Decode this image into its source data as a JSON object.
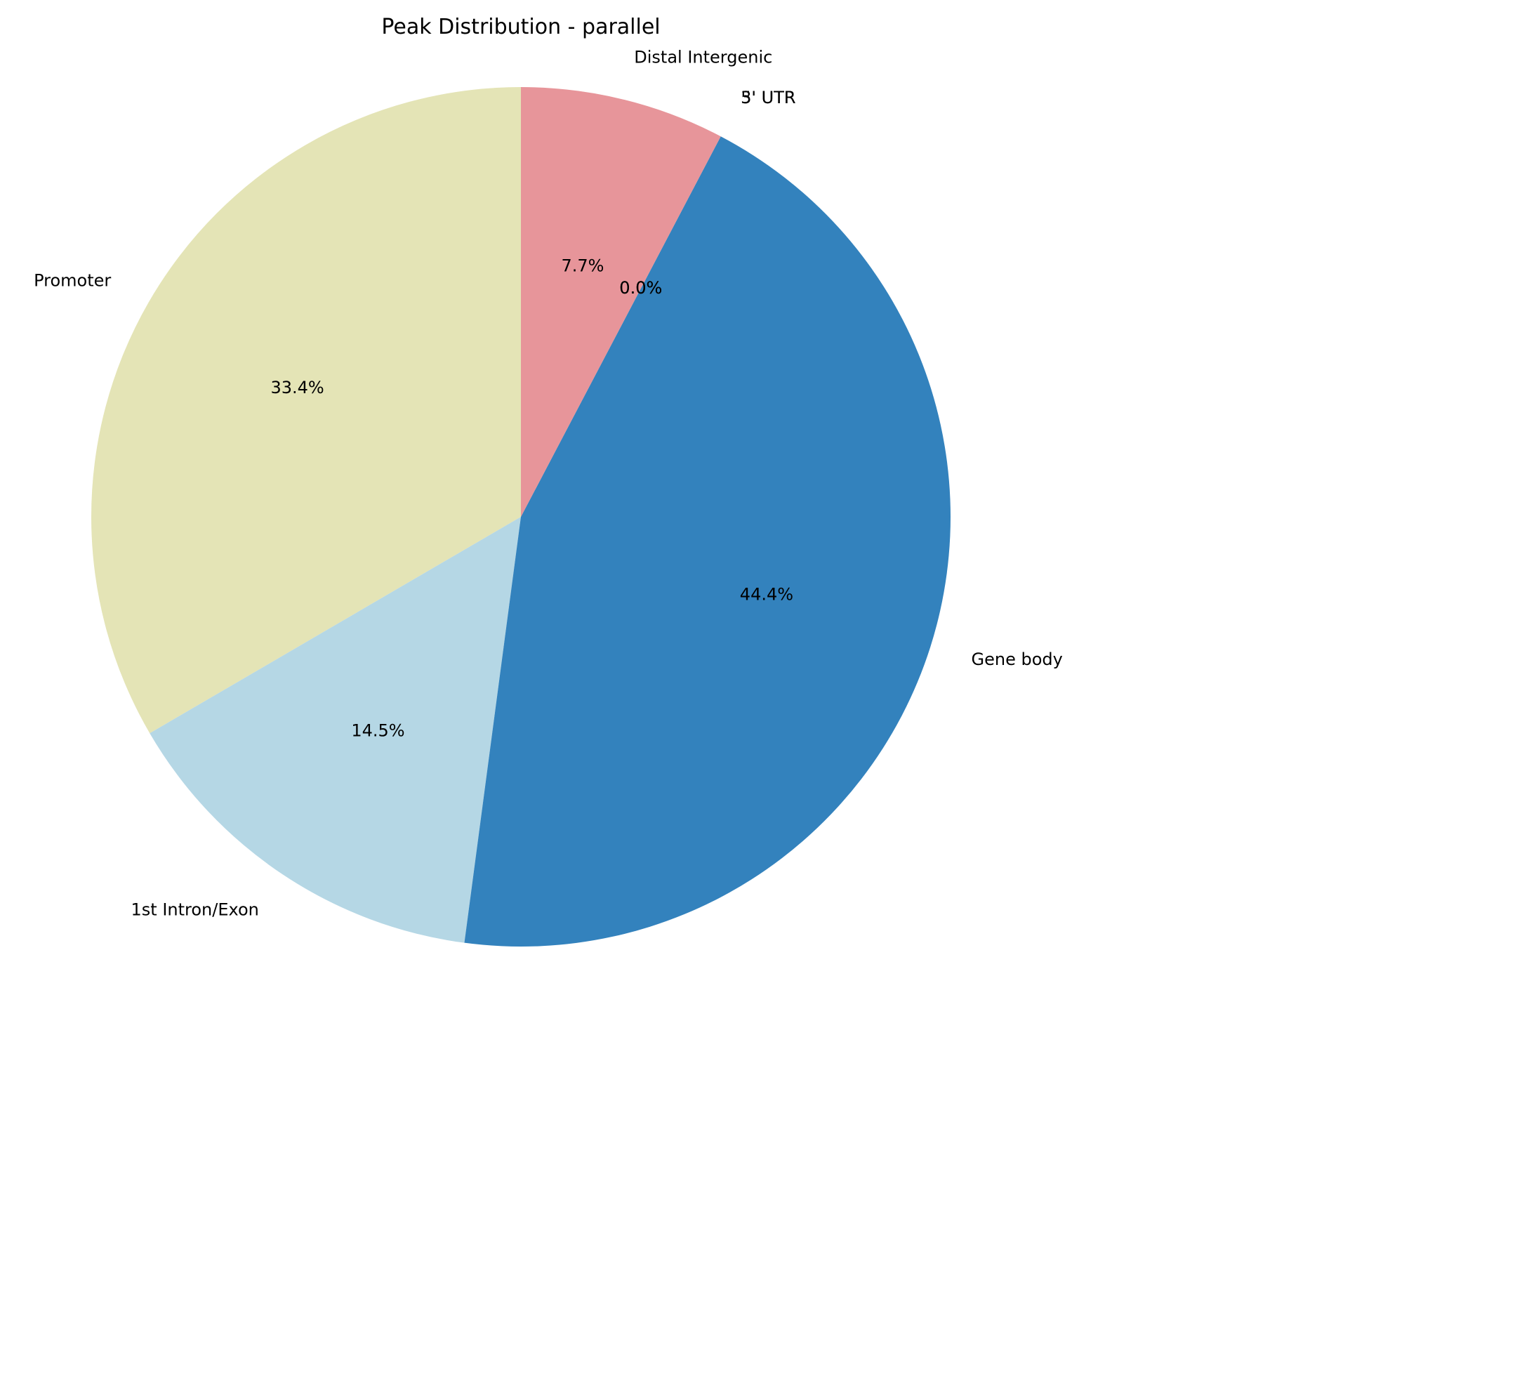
{
  "chart_data": {
    "type": "pie",
    "title": "Peak Distribution - parallel",
    "start_angle_deg": 90,
    "direction": "counterclockwise",
    "slices": [
      {
        "label": "Promoter",
        "value": 33.4,
        "pct_text": "33.4%",
        "color": "#e4e4b6"
      },
      {
        "label": "1st Intron/Exon",
        "value": 14.5,
        "pct_text": "14.5%",
        "color": "#b5d7e5"
      },
      {
        "label": "Gene body",
        "value": 44.4,
        "pct_text": "44.4%",
        "color": "#3382bd"
      },
      {
        "label": "3' UTR",
        "value": 0.0,
        "pct_text": "0.0%",
        "color": "#3382bd"
      },
      {
        "label": "5' UTR",
        "value": 0.0,
        "pct_text": "0.0%",
        "color": "#e7959a"
      },
      {
        "label": "Distal Intergenic",
        "value": 7.7,
        "pct_text": "7.7%",
        "color": "#e7959a"
      }
    ]
  }
}
